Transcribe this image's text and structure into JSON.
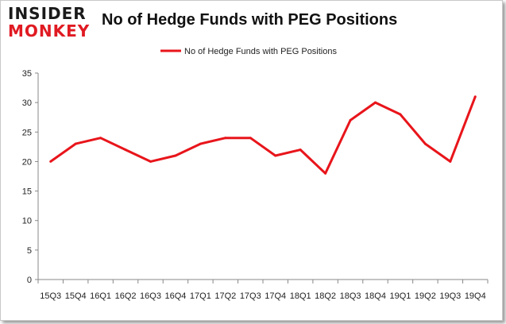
{
  "header": {
    "logo_line1": "INSIDER",
    "logo_line2": "MONKEY"
  },
  "chart_data": {
    "type": "line",
    "title": "No of Hedge Funds with PEG Positions",
    "xlabel": "",
    "ylabel": "",
    "categories": [
      "15Q3",
      "15Q4",
      "16Q1",
      "16Q2",
      "16Q3",
      "16Q4",
      "17Q1",
      "17Q2",
      "17Q3",
      "17Q4",
      "18Q1",
      "18Q2",
      "18Q3",
      "18Q4",
      "19Q1",
      "19Q2",
      "19Q3",
      "19Q4"
    ],
    "series": [
      {
        "name": "No of Hedge Funds with PEG Positions",
        "values": [
          20,
          23,
          24,
          22,
          20,
          21,
          23,
          24,
          24,
          21,
          22,
          18,
          27,
          30,
          28,
          23,
          20,
          31
        ],
        "color": "#e8151b"
      }
    ],
    "ylim": [
      0,
      35
    ],
    "yticks": [
      0,
      5,
      10,
      15,
      20,
      25,
      30,
      35
    ],
    "grid": false,
    "legend": "top-center"
  }
}
